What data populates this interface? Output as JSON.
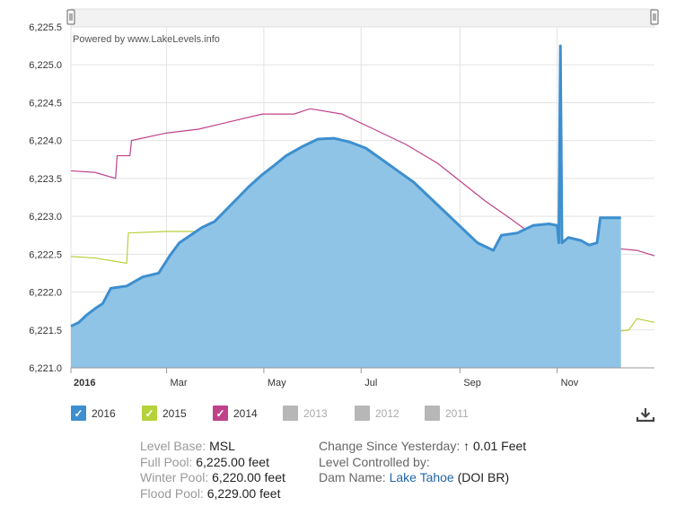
{
  "credit": "Powered by www.LakeLevels.info",
  "chart_data": {
    "type": "line",
    "ylim": [
      6221.0,
      6225.5
    ],
    "y_ticks": [
      "6,221.0",
      "6,221.5",
      "6,222.0",
      "6,222.5",
      "6,223.0",
      "6,223.5",
      "6,224.0",
      "6,224.5",
      "6,225.0",
      "6,225.5"
    ],
    "y_tick_values": [
      6221.0,
      6221.5,
      6222.0,
      6222.5,
      6223.0,
      6223.5,
      6224.0,
      6224.5,
      6225.0,
      6225.5
    ],
    "x_ticks": [
      {
        "label": "2016",
        "day": 0,
        "bold": true
      },
      {
        "label": "Mar",
        "day": 60
      },
      {
        "label": "May",
        "day": 121
      },
      {
        "label": "Jul",
        "day": 182
      },
      {
        "label": "Sep",
        "day": 244
      },
      {
        "label": "Nov",
        "day": 305
      }
    ],
    "xlim_days": [
      0,
      366
    ],
    "grid": true,
    "series": [
      {
        "name": "2016",
        "color": "#3d8fcf",
        "fill": "#8fc4e6",
        "type": "area",
        "points": [
          [
            0,
            6221.55
          ],
          [
            5,
            6221.6
          ],
          [
            10,
            6221.7
          ],
          [
            15,
            6221.78
          ],
          [
            20,
            6221.85
          ],
          [
            25,
            6222.05
          ],
          [
            35,
            6222.08
          ],
          [
            45,
            6222.2
          ],
          [
            55,
            6222.25
          ],
          [
            62,
            6222.48
          ],
          [
            68,
            6222.65
          ],
          [
            75,
            6222.75
          ],
          [
            82,
            6222.85
          ],
          [
            90,
            6222.93
          ],
          [
            98,
            6223.1
          ],
          [
            105,
            6223.25
          ],
          [
            112,
            6223.4
          ],
          [
            120,
            6223.55
          ],
          [
            128,
            6223.68
          ],
          [
            135,
            6223.8
          ],
          [
            145,
            6223.92
          ],
          [
            155,
            6224.02
          ],
          [
            165,
            6224.03
          ],
          [
            175,
            6223.98
          ],
          [
            185,
            6223.9
          ],
          [
            195,
            6223.75
          ],
          [
            205,
            6223.6
          ],
          [
            215,
            6223.45
          ],
          [
            225,
            6223.25
          ],
          [
            235,
            6223.05
          ],
          [
            245,
            6222.85
          ],
          [
            255,
            6222.65
          ],
          [
            265,
            6222.55
          ],
          [
            270,
            6222.75
          ],
          [
            280,
            6222.78
          ],
          [
            290,
            6222.88
          ],
          [
            300,
            6222.9
          ],
          [
            305,
            6222.88
          ],
          [
            306,
            6222.65
          ],
          [
            307,
            6225.25
          ],
          [
            308,
            6222.65
          ],
          [
            312,
            6222.72
          ],
          [
            320,
            6222.68
          ],
          [
            325,
            6222.62
          ],
          [
            330,
            6222.65
          ],
          [
            332,
            6222.98
          ],
          [
            345,
            6222.98
          ]
        ]
      },
      {
        "name": "2015",
        "color": "#b6d23a",
        "type": "line",
        "points": [
          [
            0,
            6222.47
          ],
          [
            15,
            6222.45
          ],
          [
            35,
            6222.38
          ],
          [
            36,
            6222.78
          ],
          [
            60,
            6222.8
          ],
          [
            80,
            6222.8
          ],
          [
            90,
            6222.78
          ],
          [
            120,
            6222.72
          ],
          [
            125,
            6222.88
          ],
          [
            160,
            6222.98
          ],
          [
            175,
            6222.95
          ],
          [
            190,
            6222.9
          ],
          [
            210,
            6222.75
          ],
          [
            230,
            6222.55
          ],
          [
            245,
            6222.3
          ],
          [
            260,
            6222.2
          ],
          [
            280,
            6222.05
          ],
          [
            300,
            6221.8
          ],
          [
            320,
            6221.5
          ],
          [
            330,
            6221.45
          ],
          [
            350,
            6221.5
          ],
          [
            355,
            6221.65
          ],
          [
            366,
            6221.6
          ]
        ]
      },
      {
        "name": "2014",
        "color": "#c0428a",
        "type": "line",
        "points": [
          [
            0,
            6223.6
          ],
          [
            15,
            6223.58
          ],
          [
            28,
            6223.5
          ],
          [
            29,
            6223.8
          ],
          [
            37,
            6223.8
          ],
          [
            38,
            6224.0
          ],
          [
            60,
            6224.1
          ],
          [
            80,
            6224.15
          ],
          [
            100,
            6224.25
          ],
          [
            120,
            6224.35
          ],
          [
            140,
            6224.35
          ],
          [
            150,
            6224.42
          ],
          [
            170,
            6224.35
          ],
          [
            190,
            6224.15
          ],
          [
            210,
            6223.95
          ],
          [
            230,
            6223.7
          ],
          [
            245,
            6223.45
          ],
          [
            260,
            6223.2
          ],
          [
            275,
            6222.98
          ],
          [
            290,
            6222.75
          ],
          [
            305,
            6222.6
          ],
          [
            320,
            6222.52
          ],
          [
            340,
            6222.58
          ],
          [
            355,
            6222.55
          ],
          [
            366,
            6222.48
          ]
        ]
      }
    ]
  },
  "legend": [
    {
      "label": "2016",
      "color": "#3d8fcf",
      "checked": true
    },
    {
      "label": "2015",
      "color": "#b6d23a",
      "checked": true
    },
    {
      "label": "2014",
      "color": "#c0428a",
      "checked": true
    },
    {
      "label": "2013",
      "color": "#b7b7b7",
      "checked": false
    },
    {
      "label": "2012",
      "color": "#b7b7b7",
      "checked": false
    },
    {
      "label": "2011",
      "color": "#b7b7b7",
      "checked": false
    }
  ],
  "info": {
    "level_base_label": "Level Base:",
    "level_base_value": "MSL",
    "full_pool_label": "Full Pool:",
    "full_pool_value": "6,225.00 feet",
    "winter_pool_label": "Winter Pool:",
    "winter_pool_value": "6,220.00 feet",
    "flood_pool_label": "Flood Pool:",
    "flood_pool_value": "6,229.00 feet",
    "change_label": "Change Since Yesterday:",
    "change_value": "0.01 Feet",
    "change_arrow": "↑",
    "controlled_label": "Level Controlled by:",
    "dam_label": "Dam Name:",
    "dam_link": "Lake Tahoe",
    "dam_suffix": "(DOI BR)"
  }
}
